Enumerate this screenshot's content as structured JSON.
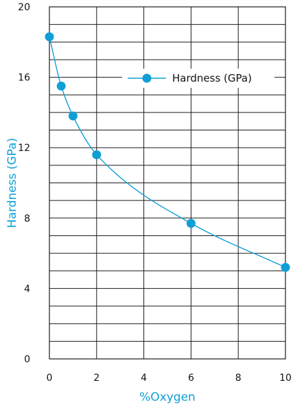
{
  "colors": {
    "series": "#0f9fd6",
    "grid": "#1a1a1a",
    "background": "#ffffff"
  },
  "chart_data": {
    "type": "line",
    "title": "",
    "xlabel": "%Oxygen",
    "ylabel": "Hardness (GPa)",
    "xlim": [
      0,
      10
    ],
    "ylim": [
      0,
      20
    ],
    "x_ticks": [
      0,
      2,
      4,
      6,
      8,
      10
    ],
    "y_ticks": [
      0,
      4,
      8,
      12,
      16,
      20
    ],
    "grid": true,
    "legend_position": "top-right",
    "series": [
      {
        "name": "Hardness (GPa)",
        "marker": "circle",
        "smooth": true,
        "points": [
          {
            "x": 0,
            "y": 18.3
          },
          {
            "x": 0.5,
            "y": 15.5
          },
          {
            "x": 1,
            "y": 13.8
          },
          {
            "x": 2,
            "y": 11.6
          },
          {
            "x": 6,
            "y": 7.7
          },
          {
            "x": 10,
            "y": 5.2
          }
        ]
      }
    ]
  }
}
